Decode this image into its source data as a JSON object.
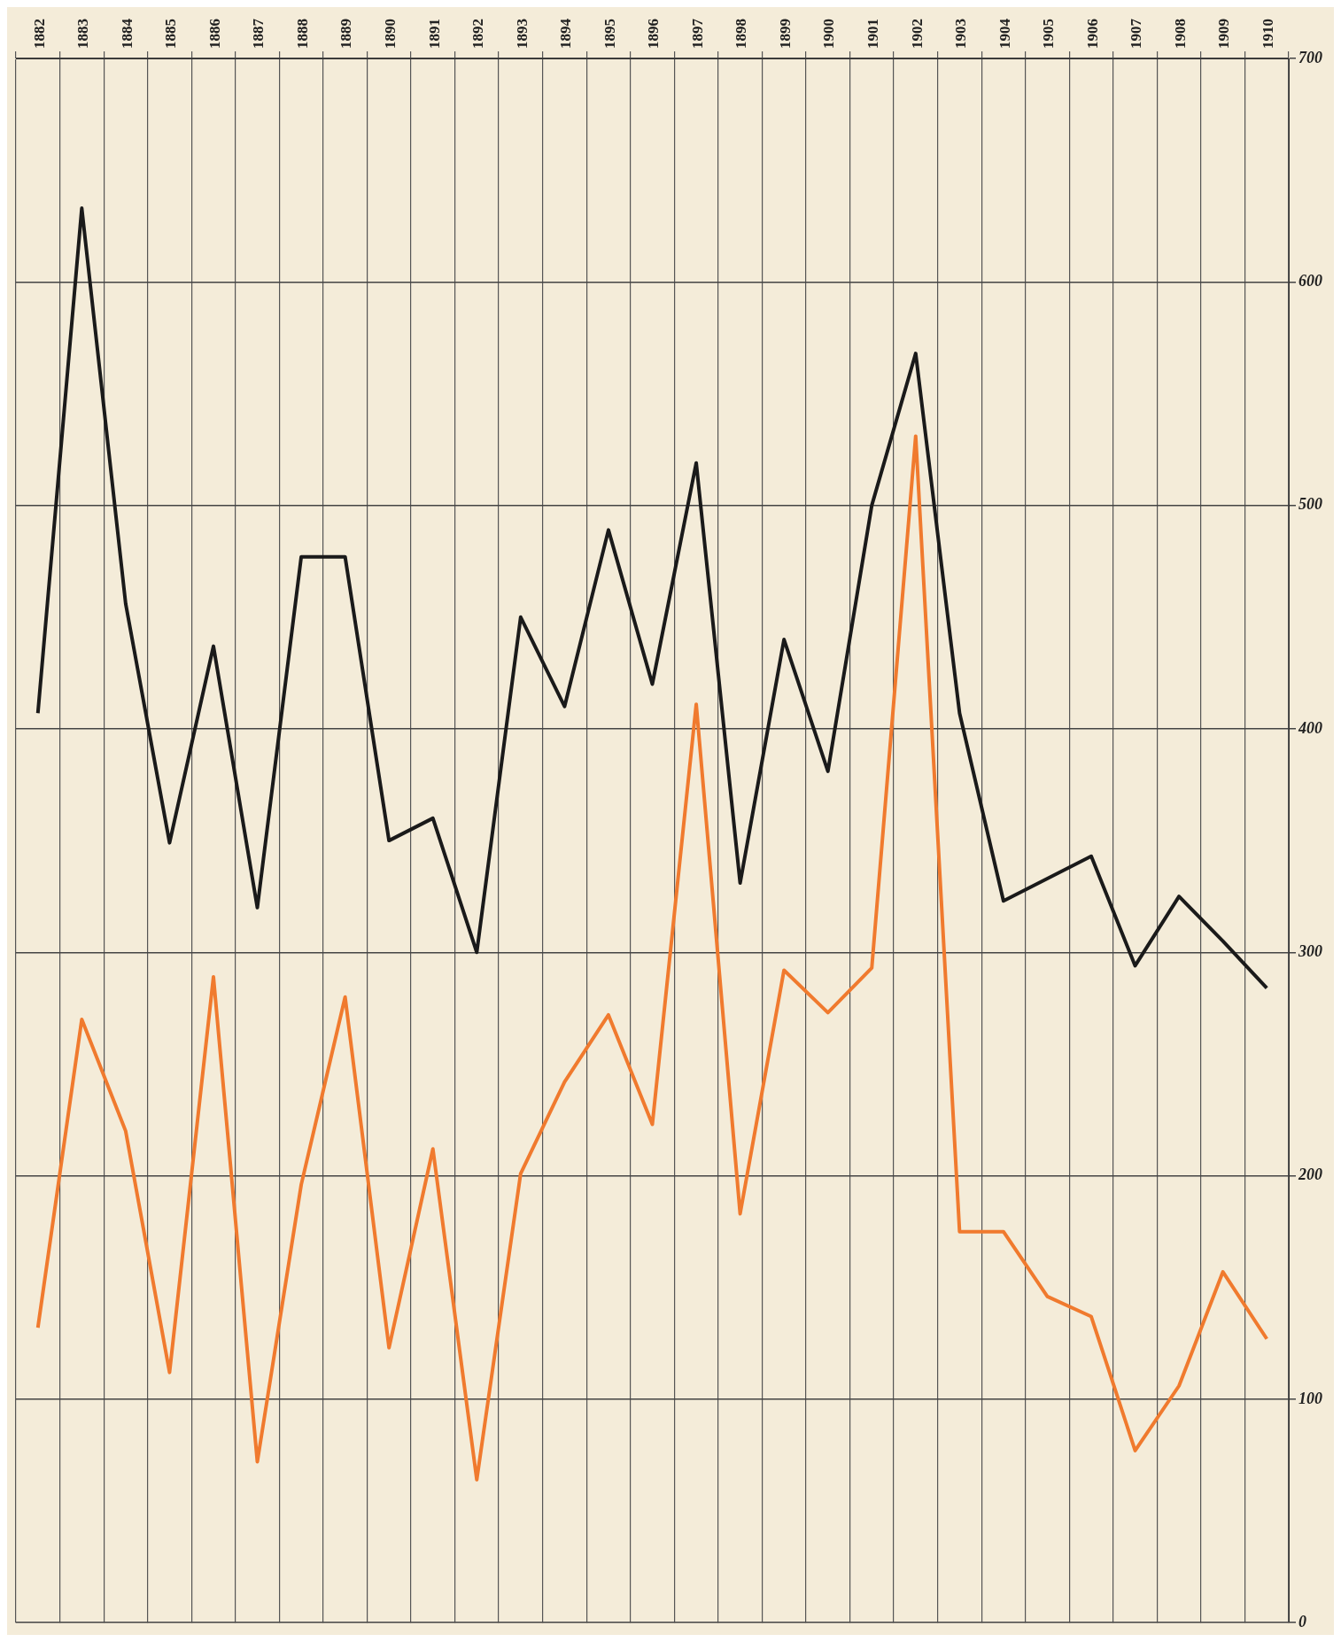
{
  "chart_data": {
    "type": "line",
    "categories": [
      "1882",
      "1883",
      "1884",
      "1885",
      "1886",
      "1887",
      "1888",
      "1889",
      "1890",
      "1891",
      "1892",
      "1893",
      "1894",
      "1895",
      "1896",
      "1897",
      "1898",
      "1899",
      "1900",
      "1901",
      "1902",
      "1903",
      "1904",
      "1905",
      "1906",
      "1907",
      "1908",
      "1909",
      "1910"
    ],
    "series": [
      {
        "color": "#1a1a1a",
        "values": [
          407,
          633,
          456,
          349,
          437,
          320,
          477,
          477,
          350,
          360,
          300,
          450,
          410,
          489,
          420,
          519,
          331,
          440,
          381,
          500,
          568,
          407,
          323,
          333,
          343,
          294,
          325,
          305,
          284
        ]
      },
      {
        "color": "#f07a2e",
        "values": [
          132,
          270,
          220,
          112,
          289,
          72,
          196,
          280,
          123,
          212,
          64,
          201,
          242,
          272,
          223,
          411,
          183,
          292,
          273,
          293,
          531,
          175,
          175,
          146,
          137,
          77,
          106,
          157,
          127
        ]
      }
    ],
    "ylim": [
      0,
      700
    ],
    "yticks": [
      0,
      100,
      200,
      300,
      400,
      500,
      600,
      700
    ],
    "grid": true,
    "legend": false,
    "marker": "none",
    "line_style": "solid"
  }
}
